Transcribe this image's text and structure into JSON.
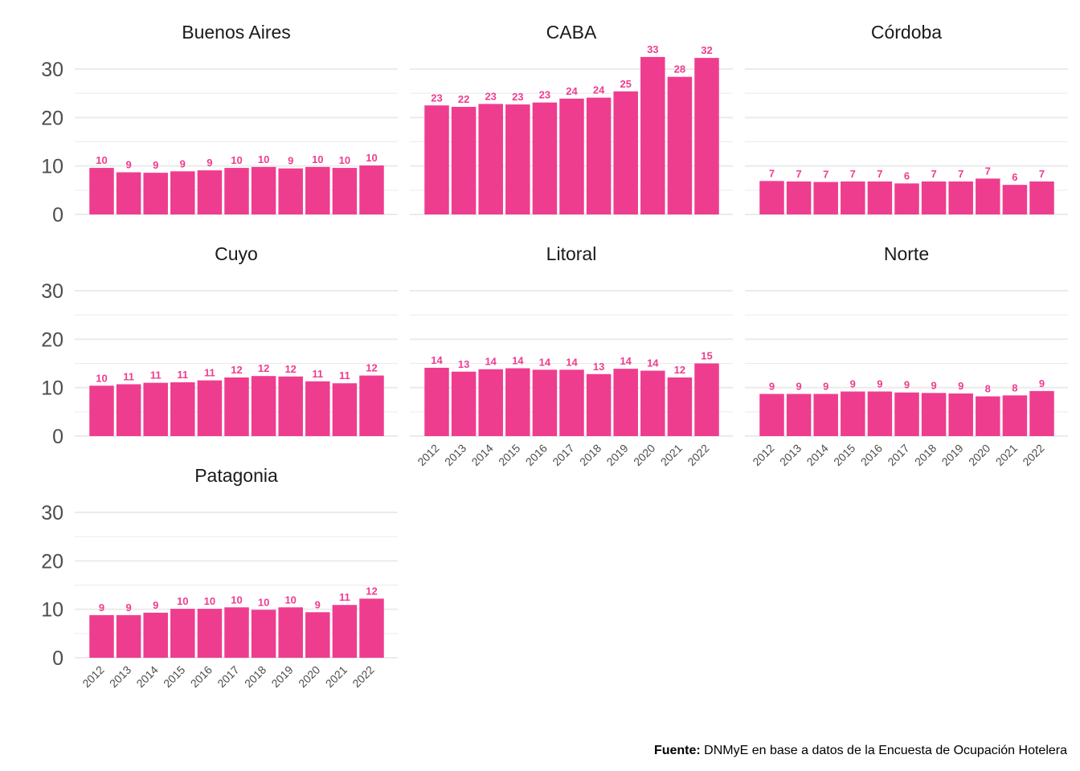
{
  "caption": {
    "bold": "Fuente:",
    "text": " DNMyE en base a datos de la Encuesta de Ocupación Hotelera"
  },
  "colors": {
    "bar": "#EE3D8F",
    "label": "#EE3D8F",
    "grid": "#ebebeb"
  },
  "chart_data": {
    "type": "bar",
    "layout": "facet-wrap 3 columns",
    "categories": [
      "2012",
      "2013",
      "2014",
      "2015",
      "2016",
      "2017",
      "2018",
      "2019",
      "2020",
      "2021",
      "2022"
    ],
    "ylim": [
      0,
      33
    ],
    "yticks": [
      0,
      10,
      20,
      30
    ],
    "grid": true,
    "panels": [
      {
        "name": "Buenos Aires",
        "values": [
          9.6,
          8.7,
          8.6,
          8.9,
          9.1,
          9.6,
          9.8,
          9.5,
          9.8,
          9.6,
          10.1
        ],
        "labels": [
          "10",
          "9",
          "9",
          "9",
          "9",
          "10",
          "10",
          "9",
          "10",
          "10",
          "10"
        ]
      },
      {
        "name": "CABA",
        "values": [
          22.5,
          22.2,
          22.8,
          22.7,
          23.1,
          23.9,
          24.1,
          25.4,
          32.5,
          28.4,
          32.3
        ],
        "labels": [
          "23",
          "22",
          "23",
          "23",
          "23",
          "24",
          "24",
          "25",
          "33",
          "28",
          "32"
        ]
      },
      {
        "name": "Córdoba",
        "values": [
          6.9,
          6.8,
          6.7,
          6.8,
          6.8,
          6.4,
          6.8,
          6.8,
          7.4,
          6.1,
          6.8
        ],
        "labels": [
          "7",
          "7",
          "7",
          "7",
          "7",
          "6",
          "7",
          "7",
          "7",
          "6",
          "7"
        ]
      },
      {
        "name": "Cuyo",
        "values": [
          10.4,
          10.7,
          11.0,
          11.1,
          11.5,
          12.1,
          12.4,
          12.3,
          11.3,
          10.9,
          12.5
        ],
        "labels": [
          "10",
          "11",
          "11",
          "11",
          "11",
          "12",
          "12",
          "12",
          "11",
          "11",
          "12"
        ]
      },
      {
        "name": "Litoral",
        "values": [
          14.1,
          13.3,
          13.8,
          14.0,
          13.7,
          13.7,
          12.8,
          13.9,
          13.5,
          12.1,
          15.0
        ],
        "labels": [
          "14",
          "13",
          "14",
          "14",
          "14",
          "14",
          "13",
          "14",
          "14",
          "12",
          "15"
        ]
      },
      {
        "name": "Norte",
        "values": [
          8.7,
          8.7,
          8.7,
          9.2,
          9.2,
          9.0,
          8.9,
          8.8,
          8.2,
          8.4,
          9.3
        ],
        "labels": [
          "9",
          "9",
          "9",
          "9",
          "9",
          "9",
          "9",
          "9",
          "8",
          "8",
          "9"
        ]
      },
      {
        "name": "Patagonia",
        "values": [
          8.8,
          8.8,
          9.3,
          10.1,
          10.1,
          10.4,
          9.9,
          10.4,
          9.4,
          10.9,
          12.2
        ],
        "labels": [
          "9",
          "9",
          "9",
          "10",
          "10",
          "10",
          "10",
          "10",
          "9",
          "11",
          "12"
        ]
      }
    ],
    "xtick_rows": [
      "Litoral",
      "Norte",
      "Patagonia"
    ]
  }
}
